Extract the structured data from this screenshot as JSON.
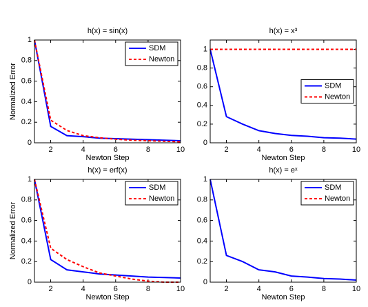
{
  "chart_data": [
    {
      "type": "line",
      "title": "h(x) = sin(x)",
      "x_label": "Newton Step",
      "y_label": "Normalized Error",
      "x": [
        1,
        2,
        3,
        4,
        5,
        6,
        7,
        8,
        9,
        10
      ],
      "series": [
        {
          "name": "SDM",
          "color": "#0000ff",
          "values": [
            1,
            0.16,
            0.07,
            0.06,
            0.045,
            0.04,
            0.035,
            0.03,
            0.025,
            0.02
          ]
        },
        {
          "name": "Newton",
          "color": "#ff0000",
          "values": [
            1,
            0.22,
            0.12,
            0.07,
            0.05,
            0.035,
            0.025,
            0.02,
            0.015,
            0.01
          ]
        }
      ],
      "xlim": [
        1,
        10
      ],
      "xticks": [
        2,
        4,
        6,
        8,
        10
      ],
      "ylim": [
        0,
        1
      ],
      "yticks": [
        0,
        0.2,
        0.4,
        0.6,
        0.8,
        1
      ],
      "legend": "upper right"
    },
    {
      "type": "line",
      "title": "h(x) = x³",
      "x_label": "Newton Step",
      "x": [
        1,
        2,
        3,
        4,
        5,
        6,
        7,
        8,
        9,
        10
      ],
      "series": [
        {
          "name": "SDM",
          "color": "#0000ff",
          "values": [
            1,
            0.28,
            0.2,
            0.13,
            0.1,
            0.08,
            0.07,
            0.055,
            0.05,
            0.04
          ]
        },
        {
          "name": "Newton",
          "color": "#ff0000",
          "values": [
            1,
            1,
            1,
            1,
            1,
            1,
            1,
            1,
            1,
            1
          ]
        }
      ],
      "xlim": [
        1,
        10
      ],
      "xticks": [
        2,
        4,
        6,
        8,
        10
      ],
      "ylim": [
        0,
        1.1
      ],
      "yticks": [
        0,
        0.2,
        0.4,
        0.6,
        0.8,
        1
      ],
      "legend": "center right"
    },
    {
      "type": "line",
      "title": "h(x) = erf(x)",
      "x_label": "Newton Step",
      "y_label": "Normalized Error",
      "x": [
        1,
        2,
        3,
        4,
        5,
        6,
        7,
        8,
        9,
        10
      ],
      "series": [
        {
          "name": "SDM",
          "color": "#0000ff",
          "values": [
            1,
            0.22,
            0.12,
            0.1,
            0.08,
            0.07,
            0.06,
            0.05,
            0.045,
            0.04
          ]
        },
        {
          "name": "Newton",
          "color": "#ff0000",
          "values": [
            1,
            0.33,
            0.22,
            0.15,
            0.09,
            0.06,
            0.03,
            0.01,
            0,
            0
          ]
        }
      ],
      "xlim": [
        1,
        10
      ],
      "xticks": [
        2,
        4,
        6,
        8,
        10
      ],
      "ylim": [
        0,
        1
      ],
      "yticks": [
        0,
        0.2,
        0.4,
        0.6,
        0.8,
        1
      ],
      "legend": "upper right"
    },
    {
      "type": "line",
      "title": "h(x) = eˣ",
      "x_label": "Newton Step",
      "x": [
        1,
        2,
        3,
        4,
        5,
        6,
        7,
        8,
        9,
        10
      ],
      "series": [
        {
          "name": "SDM",
          "color": "#0000ff",
          "values": [
            1,
            0.26,
            0.2,
            0.12,
            0.1,
            0.06,
            0.05,
            0.035,
            0.03,
            0.02
          ]
        },
        {
          "name": "Newton",
          "color": "#ff0000",
          "values": [
            null,
            null,
            null,
            null,
            null,
            null,
            null,
            null,
            null,
            null
          ]
        }
      ],
      "xlim": [
        1,
        10
      ],
      "xticks": [
        2,
        4,
        6,
        8,
        10
      ],
      "ylim": [
        0,
        1
      ],
      "yticks": [
        0,
        0.2,
        0.4,
        0.6,
        0.8,
        1
      ],
      "legend": "upper right"
    }
  ]
}
